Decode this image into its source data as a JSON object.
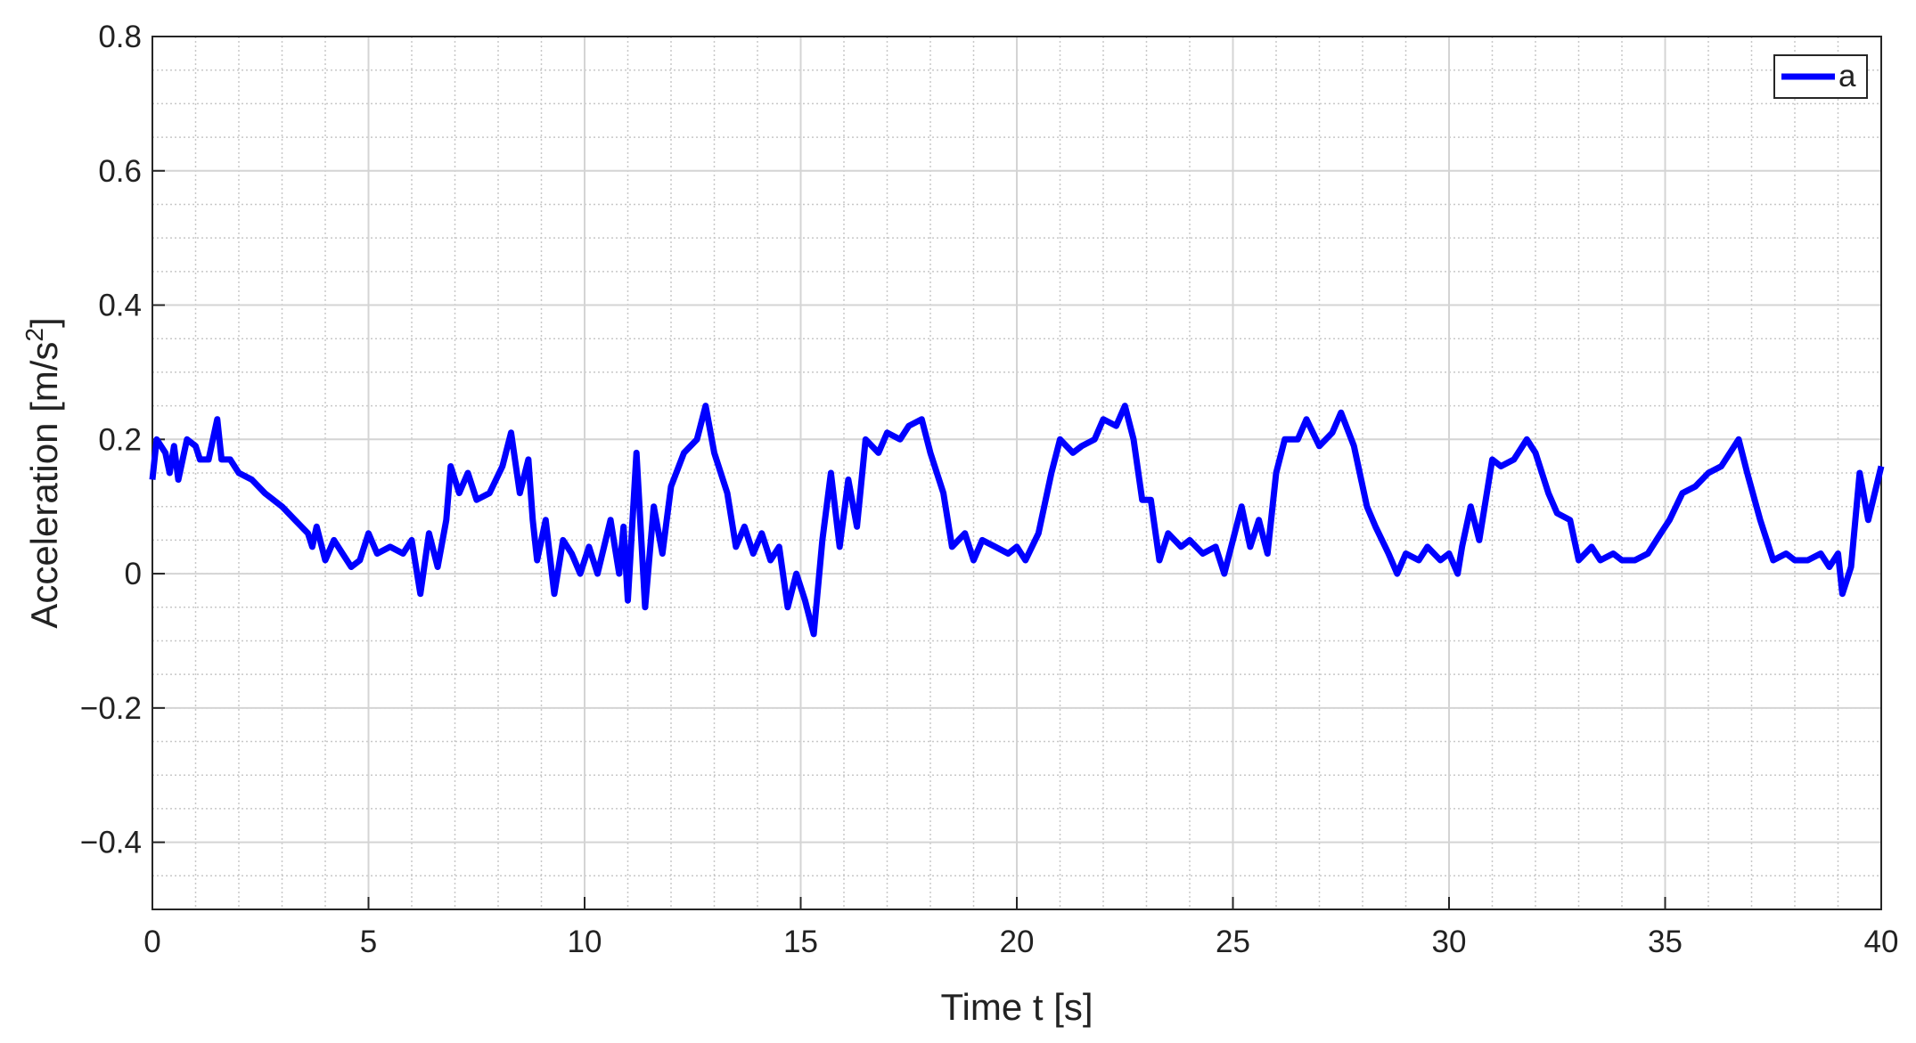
{
  "chart_data": {
    "type": "line",
    "xlabel": "Time t [s]",
    "ylabel": {
      "text": "Acceleration [m/s",
      "superscript": "2",
      "suffix": "]"
    },
    "x": [
      0,
      0.1,
      0.3,
      0.4,
      0.5,
      0.6,
      0.8,
      1.0,
      1.1,
      1.3,
      1.4,
      1.5,
      1.6,
      1.8,
      2.0,
      2.3,
      2.6,
      3.0,
      3.3,
      3.6,
      3.7,
      3.8,
      4.0,
      4.2,
      4.4,
      4.6,
      4.8,
      5.0,
      5.2,
      5.5,
      5.8,
      6.0,
      6.2,
      6.4,
      6.6,
      6.8,
      6.9,
      7.1,
      7.3,
      7.5,
      7.8,
      8.1,
      8.3,
      8.5,
      8.7,
      8.8,
      8.9,
      9.1,
      9.3,
      9.5,
      9.7,
      9.9,
      10.1,
      10.3,
      10.6,
      10.8,
      10.9,
      11.0,
      11.2,
      11.4,
      11.6,
      11.8,
      12.0,
      12.3,
      12.6,
      12.8,
      13.0,
      13.3,
      13.5,
      13.7,
      13.9,
      14.1,
      14.3,
      14.5,
      14.7,
      14.9,
      15.1,
      15.3,
      15.5,
      15.7,
      15.9,
      16.1,
      16.3,
      16.5,
      16.8,
      17.0,
      17.3,
      17.5,
      17.8,
      18.0,
      18.3,
      18.5,
      18.8,
      19.0,
      19.2,
      19.5,
      19.8,
      20.0,
      20.2,
      20.5,
      20.8,
      21.0,
      21.3,
      21.5,
      21.8,
      22.0,
      22.3,
      22.5,
      22.7,
      22.9,
      23.1,
      23.3,
      23.5,
      23.8,
      24.0,
      24.3,
      24.6,
      24.8,
      25.0,
      25.2,
      25.4,
      25.6,
      25.8,
      26.0,
      26.2,
      26.5,
      26.7,
      27.0,
      27.3,
      27.5,
      27.8,
      28.1,
      28.3,
      28.6,
      28.8,
      29.0,
      29.3,
      29.5,
      29.8,
      30.0,
      30.2,
      30.3,
      30.5,
      30.7,
      31.0,
      31.2,
      31.5,
      31.8,
      32.0,
      32.3,
      32.5,
      32.8,
      33.0,
      33.3,
      33.5,
      33.8,
      34.0,
      34.3,
      34.6,
      34.9,
      35.1,
      35.4,
      35.7,
      36.0,
      36.3,
      36.5,
      36.7,
      36.9,
      37.2,
      37.5,
      37.8,
      38.0,
      38.3,
      38.6,
      38.8,
      39.0,
      39.1,
      39.3,
      39.5,
      39.7,
      40.0
    ],
    "series": [
      {
        "name": "a",
        "color": "#0000ff",
        "values": [
          0.14,
          0.2,
          0.18,
          0.15,
          0.19,
          0.14,
          0.2,
          0.19,
          0.17,
          0.17,
          0.2,
          0.23,
          0.17,
          0.17,
          0.15,
          0.14,
          0.12,
          0.1,
          0.08,
          0.06,
          0.04,
          0.07,
          0.02,
          0.05,
          0.03,
          0.01,
          0.02,
          0.06,
          0.03,
          0.04,
          0.03,
          0.05,
          -0.03,
          0.06,
          0.01,
          0.08,
          0.16,
          0.12,
          0.15,
          0.11,
          0.12,
          0.16,
          0.21,
          0.12,
          0.17,
          0.08,
          0.02,
          0.08,
          -0.03,
          0.05,
          0.03,
          0.0,
          0.04,
          0.0,
          0.08,
          0.0,
          0.07,
          -0.04,
          0.18,
          -0.05,
          0.1,
          0.03,
          0.13,
          0.18,
          0.2,
          0.25,
          0.18,
          0.12,
          0.04,
          0.07,
          0.03,
          0.06,
          0.02,
          0.04,
          -0.05,
          0.0,
          -0.04,
          -0.09,
          0.05,
          0.15,
          0.04,
          0.14,
          0.07,
          0.2,
          0.18,
          0.21,
          0.2,
          0.22,
          0.23,
          0.18,
          0.12,
          0.04,
          0.06,
          0.02,
          0.05,
          0.04,
          0.03,
          0.04,
          0.02,
          0.06,
          0.15,
          0.2,
          0.18,
          0.19,
          0.2,
          0.23,
          0.22,
          0.25,
          0.2,
          0.11,
          0.11,
          0.02,
          0.06,
          0.04,
          0.05,
          0.03,
          0.04,
          0.0,
          0.05,
          0.1,
          0.04,
          0.08,
          0.03,
          0.15,
          0.2,
          0.2,
          0.23,
          0.19,
          0.21,
          0.24,
          0.19,
          0.1,
          0.07,
          0.03,
          0.0,
          0.03,
          0.02,
          0.04,
          0.02,
          0.03,
          0.0,
          0.04,
          0.1,
          0.05,
          0.17,
          0.16,
          0.17,
          0.2,
          0.18,
          0.12,
          0.09,
          0.08,
          0.02,
          0.04,
          0.02,
          0.03,
          0.02,
          0.02,
          0.03,
          0.06,
          0.08,
          0.12,
          0.13,
          0.15,
          0.16,
          0.18,
          0.2,
          0.15,
          0.08,
          0.02,
          0.03,
          0.02,
          0.02,
          0.03,
          0.01,
          0.03,
          -0.03,
          0.01,
          0.15,
          0.08,
          0.16
        ]
      }
    ],
    "xlim": [
      0,
      40
    ],
    "xticks": [
      0,
      5,
      10,
      15,
      20,
      25,
      30,
      35,
      40
    ],
    "ylim": [
      -0.5,
      0.8
    ],
    "yticks": [
      {
        "value": -0.4,
        "label": "−0.4"
      },
      {
        "value": -0.2,
        "label": "−0.2"
      },
      0,
      0.2,
      0.4,
      0.6,
      0.8
    ],
    "grid": true,
    "minor_grid": true,
    "xminor_step": 1,
    "yminor_step": 0.05,
    "legend": "upper right"
  }
}
